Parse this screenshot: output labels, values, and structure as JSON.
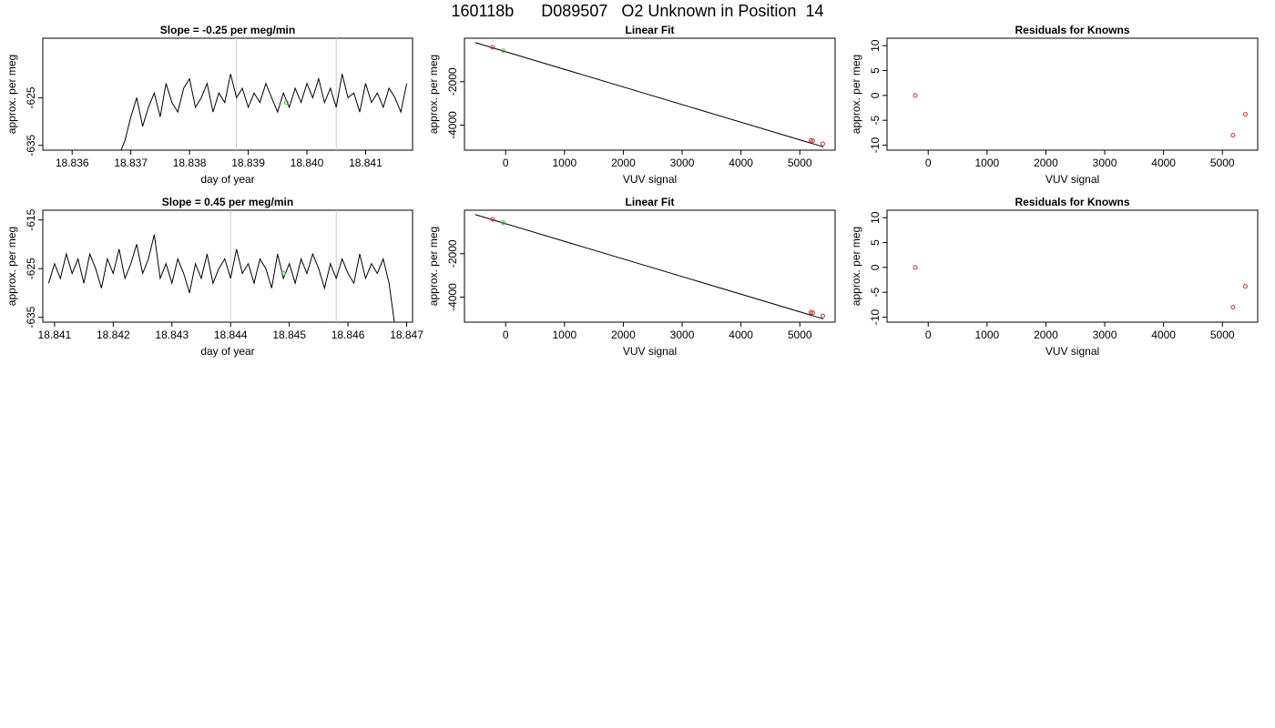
{
  "page": {
    "title": "160118b      D089507   O2 Unknown in Position  14"
  },
  "colors": {
    "line": "#000000",
    "vline": "#cccccc",
    "known": "#cc3333",
    "unknown": "#33cc33"
  },
  "chart_data": [
    {
      "id": "p1",
      "type": "line",
      "title": "Slope =  -0.25  per meg/min",
      "xlabel": "day of year",
      "ylabel": "approx. per meg",
      "xlim": [
        18.8355,
        18.8418
      ],
      "ylim": [
        -636,
        -612.5
      ],
      "xticks": [
        18.836,
        18.837,
        18.838,
        18.839,
        18.84,
        18.841
      ],
      "xtick_labels": [
        "18.836",
        "18.837",
        "18.838",
        "18.839",
        "18.840",
        "18.841"
      ],
      "yticks": [
        -635,
        -625
      ],
      "ytick_labels": [
        "-635",
        "-625"
      ],
      "vlines": [
        18.8388,
        18.8405
      ],
      "series": [
        {
          "x": [
            18.8368,
            18.8369,
            18.837,
            18.8371,
            18.8372,
            18.8373,
            18.8374,
            18.8375,
            18.8376,
            18.8377,
            18.8378,
            18.8379,
            18.838,
            18.8381,
            18.8382,
            18.8383,
            18.8384,
            18.8385,
            18.8386,
            18.8387,
            18.8388,
            18.8389,
            18.839,
            18.8391,
            18.8392,
            18.8393,
            18.8394,
            18.8395,
            18.8396,
            18.8397,
            18.8398,
            18.8399,
            18.84,
            18.8401,
            18.8402,
            18.8403,
            18.8404,
            18.8405,
            18.8406,
            18.8407,
            18.8408,
            18.8409,
            18.841,
            18.8411,
            18.8412,
            18.8413,
            18.8414,
            18.8415,
            18.8416,
            18.8417
          ],
          "y": [
            -637,
            -634,
            -629,
            -625,
            -631,
            -627,
            -624,
            -629,
            -622,
            -626,
            -628,
            -623,
            -621,
            -627,
            -625,
            -622,
            -628,
            -624,
            -626,
            -620,
            -625,
            -623,
            -627,
            -624,
            -626,
            -622,
            -625,
            -628,
            -624,
            -627,
            -623,
            -626,
            -622,
            -625,
            -621,
            -626,
            -623,
            -627,
            -620,
            -625,
            -624,
            -628,
            -622,
            -626,
            -624,
            -627,
            -623,
            -625,
            -628,
            -622
          ]
        }
      ],
      "points": [
        {
          "x": 18.83965,
          "y": -626,
          "role": "unknown"
        }
      ]
    },
    {
      "id": "p2",
      "type": "scatter",
      "title": "Linear Fit",
      "xlabel": "VUV signal",
      "ylabel": "approx. per meg",
      "xlim": [
        -700,
        5600
      ],
      "ylim": [
        -5150,
        0
      ],
      "xticks": [
        0,
        1000,
        2000,
        3000,
        4000,
        5000
      ],
      "xtick_labels": [
        "0",
        "1000",
        "2000",
        "3000",
        "4000",
        "5000"
      ],
      "yticks": [
        -4000,
        -2000
      ],
      "ytick_labels": [
        "-4000",
        "-2000"
      ],
      "fit_line": [
        [
          -520,
          -200
        ],
        [
          5400,
          -5000
        ]
      ],
      "points": [
        {
          "x": -220,
          "y": -420,
          "role": "known"
        },
        {
          "x": -40,
          "y": -580,
          "role": "unknown"
        },
        {
          "x": 5190,
          "y": -4700,
          "role": "known"
        },
        {
          "x": 5220,
          "y": -4720,
          "role": "known"
        },
        {
          "x": 5390,
          "y": -4860,
          "role": "known"
        }
      ]
    },
    {
      "id": "p3",
      "type": "scatter",
      "title": "Residuals for Knowns",
      "xlabel": "VUV signal",
      "ylabel": "approx. per meg",
      "xlim": [
        -700,
        5600
      ],
      "ylim": [
        -11,
        11.5
      ],
      "xticks": [
        0,
        1000,
        2000,
        3000,
        4000,
        5000
      ],
      "xtick_labels": [
        "0",
        "1000",
        "2000",
        "3000",
        "4000",
        "5000"
      ],
      "yticks": [
        -10,
        -5,
        0,
        5,
        10
      ],
      "ytick_labels": [
        "-10",
        "-5",
        "0",
        "5",
        "10"
      ],
      "points": [
        {
          "x": -220,
          "y": 0,
          "role": "known"
        },
        {
          "x": 5180,
          "y": -8,
          "role": "known"
        },
        {
          "x": 5390,
          "y": -3.8,
          "role": "known"
        }
      ]
    },
    {
      "id": "p4",
      "type": "line",
      "title": "Slope =  0.45  per meg/min",
      "xlabel": "day of year",
      "ylabel": "approx. per meg",
      "xlim": [
        18.8408,
        18.8471
      ],
      "ylim": [
        -636,
        -613
      ],
      "xticks": [
        18.841,
        18.842,
        18.843,
        18.844,
        18.845,
        18.846,
        18.847
      ],
      "xtick_labels": [
        "18.841",
        "18.842",
        "18.843",
        "18.844",
        "18.845",
        "18.846",
        "18.847"
      ],
      "yticks": [
        -635,
        -625,
        -615
      ],
      "ytick_labels": [
        "-635",
        "-625",
        "-615"
      ],
      "vlines": [
        18.844,
        18.8458
      ],
      "series": [
        {
          "x": [
            18.8409,
            18.841,
            18.8411,
            18.8412,
            18.8413,
            18.8414,
            18.8415,
            18.8416,
            18.8417,
            18.8418,
            18.8419,
            18.842,
            18.8421,
            18.8422,
            18.8423,
            18.8424,
            18.8425,
            18.8426,
            18.8427,
            18.8428,
            18.8429,
            18.843,
            18.8431,
            18.8432,
            18.8433,
            18.8434,
            18.8435,
            18.8436,
            18.8437,
            18.8438,
            18.8439,
            18.844,
            18.8441,
            18.8442,
            18.8443,
            18.8444,
            18.8445,
            18.8446,
            18.8447,
            18.8448,
            18.8449,
            18.845,
            18.8451,
            18.8452,
            18.8453,
            18.8454,
            18.8455,
            18.8456,
            18.8457,
            18.8458,
            18.8459,
            18.846,
            18.8461,
            18.8462,
            18.8463,
            18.8464,
            18.8465,
            18.8466,
            18.8467,
            18.8468
          ],
          "y": [
            -628,
            -624,
            -627,
            -622,
            -626,
            -623,
            -628,
            -622,
            -625,
            -629,
            -623,
            -626,
            -621,
            -627,
            -624,
            -620,
            -626,
            -623,
            -618,
            -627,
            -624,
            -628,
            -623,
            -626,
            -630,
            -624,
            -627,
            -622,
            -628,
            -625,
            -623,
            -627,
            -621,
            -626,
            -624,
            -628,
            -623,
            -625,
            -629,
            -622,
            -627,
            -624,
            -628,
            -623,
            -626,
            -622,
            -625,
            -629,
            -624,
            -627,
            -623,
            -626,
            -628,
            -622,
            -627,
            -624,
            -626,
            -623,
            -628,
            -637
          ]
        }
      ],
      "points": [
        {
          "x": 18.8449,
          "y": -626,
          "role": "unknown"
        }
      ]
    },
    {
      "id": "p5",
      "type": "scatter",
      "title": "Linear Fit",
      "xlabel": "VUV signal",
      "ylabel": "approx. per meg",
      "xlim": [
        -700,
        5600
      ],
      "ylim": [
        -5150,
        0
      ],
      "xticks": [
        0,
        1000,
        2000,
        3000,
        4000,
        5000
      ],
      "xtick_labels": [
        "0",
        "1000",
        "2000",
        "3000",
        "4000",
        "5000"
      ],
      "yticks": [
        -4000,
        -2000
      ],
      "ytick_labels": [
        "-4000",
        "-2000"
      ],
      "fit_line": [
        [
          -520,
          -200
        ],
        [
          5400,
          -5000
        ]
      ],
      "points": [
        {
          "x": -220,
          "y": -420,
          "role": "known"
        },
        {
          "x": -40,
          "y": -580,
          "role": "unknown"
        },
        {
          "x": 5190,
          "y": -4700,
          "role": "known"
        },
        {
          "x": 5220,
          "y": -4720,
          "role": "known"
        },
        {
          "x": 5390,
          "y": -4860,
          "role": "known"
        }
      ]
    },
    {
      "id": "p6",
      "type": "scatter",
      "title": "Residuals for Knowns",
      "xlabel": "VUV signal",
      "ylabel": "approx. per meg",
      "xlim": [
        -700,
        5600
      ],
      "ylim": [
        -11,
        11.5
      ],
      "xticks": [
        0,
        1000,
        2000,
        3000,
        4000,
        5000
      ],
      "xtick_labels": [
        "0",
        "1000",
        "2000",
        "3000",
        "4000",
        "5000"
      ],
      "yticks": [
        -10,
        -5,
        0,
        5,
        10
      ],
      "ytick_labels": [
        "-10",
        "-5",
        "0",
        "5",
        "10"
      ],
      "points": [
        {
          "x": -220,
          "y": 0,
          "role": "known"
        },
        {
          "x": 5180,
          "y": -8,
          "role": "known"
        },
        {
          "x": 5390,
          "y": -3.8,
          "role": "known"
        }
      ]
    }
  ]
}
